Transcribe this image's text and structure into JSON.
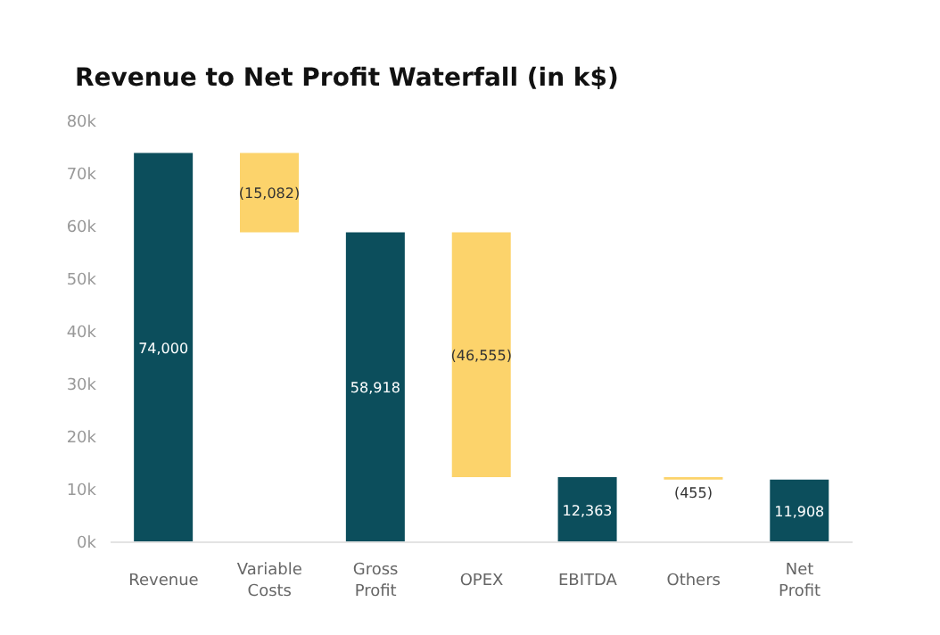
{
  "chart_data": {
    "type": "bar",
    "title": "Revenue to Net Profit Waterfall (in k$)",
    "categories": [
      "Revenue",
      "Variable Costs",
      "Gross Profit",
      "OPEX",
      "EBITDA",
      "Others",
      "Net Profit"
    ],
    "values": [
      74000,
      15082,
      58918,
      46555,
      12363,
      455,
      11908
    ],
    "base": [
      0,
      58918,
      0,
      12363,
      0,
      11908,
      0
    ],
    "value_labels": [
      "74,000",
      "(15,082)",
      "58,918",
      "(46,555)",
      "12,363",
      "(455)",
      "11,908"
    ],
    "colors": [
      "#0c4e5c",
      "#fcd36b",
      "#0c4e5c",
      "#fcd36b",
      "#0c4e5c",
      "#fcd36b",
      "#0c4e5c"
    ],
    "ylim": [
      0,
      80000
    ],
    "yticks": [
      {
        "value": 0,
        "label": "0k"
      },
      {
        "value": 10000,
        "label": "10k"
      },
      {
        "value": 20000,
        "label": "20k"
      },
      {
        "value": 30000,
        "label": "30k"
      },
      {
        "value": 40000,
        "label": "40k"
      },
      {
        "value": 50000,
        "label": "50k"
      },
      {
        "value": 60000,
        "label": "60k"
      },
      {
        "value": 70000,
        "label": "70k"
      },
      {
        "value": 80000,
        "label": "80k"
      }
    ],
    "grid": false,
    "legend": false
  }
}
